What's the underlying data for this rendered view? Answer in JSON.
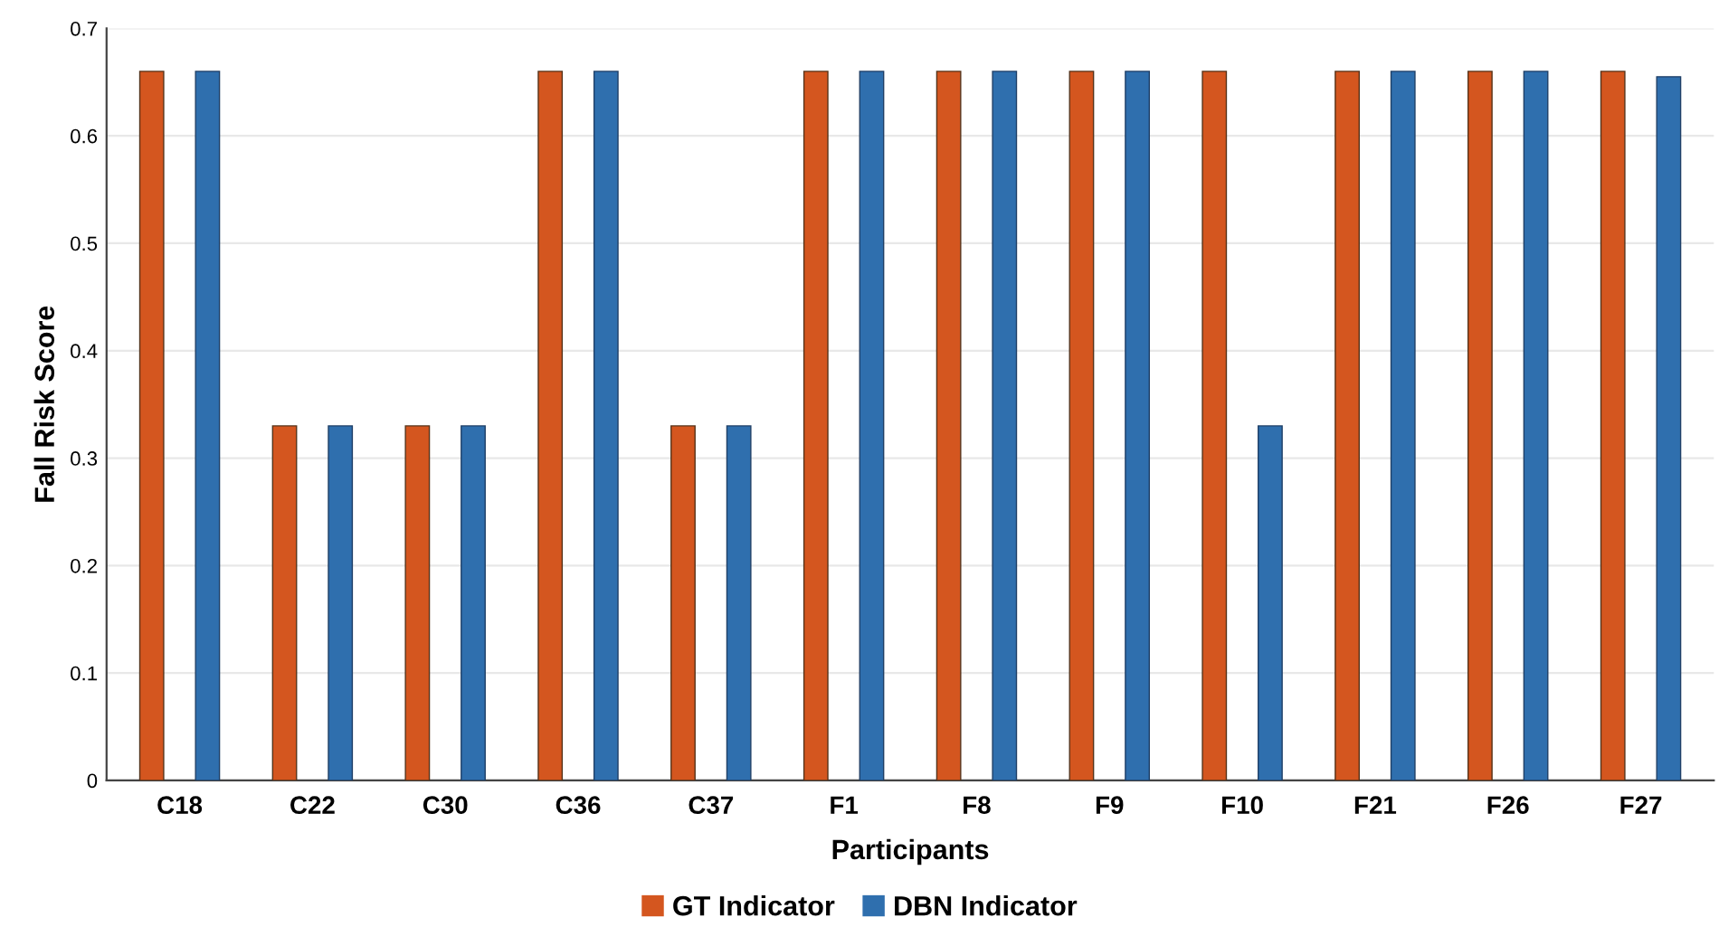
{
  "chart_data": {
    "type": "bar",
    "xlabel": "Participants",
    "ylabel": "Fall Risk Score",
    "categories": [
      "C18",
      "C22",
      "C30",
      "C36",
      "C37",
      "F1",
      "F8",
      "F9",
      "F10",
      "F21",
      "F26",
      "F27"
    ],
    "series": [
      {
        "name": "GT Indicator",
        "color": "#d4561f",
        "values": [
          0.66,
          0.33,
          0.33,
          0.66,
          0.33,
          0.66,
          0.66,
          0.66,
          0.66,
          0.66,
          0.66,
          0.66
        ]
      },
      {
        "name": "DBN Indicator",
        "color": "#2f6fae",
        "values": [
          0.66,
          0.33,
          0.33,
          0.66,
          0.33,
          0.66,
          0.66,
          0.66,
          0.33,
          0.66,
          0.66,
          0.655
        ]
      }
    ],
    "ylim": [
      0,
      0.7
    ],
    "yticks": [
      0,
      0.1,
      0.2,
      0.3,
      0.4,
      0.5,
      0.6,
      0.7
    ],
    "grid": "y",
    "legend": "bottom"
  }
}
